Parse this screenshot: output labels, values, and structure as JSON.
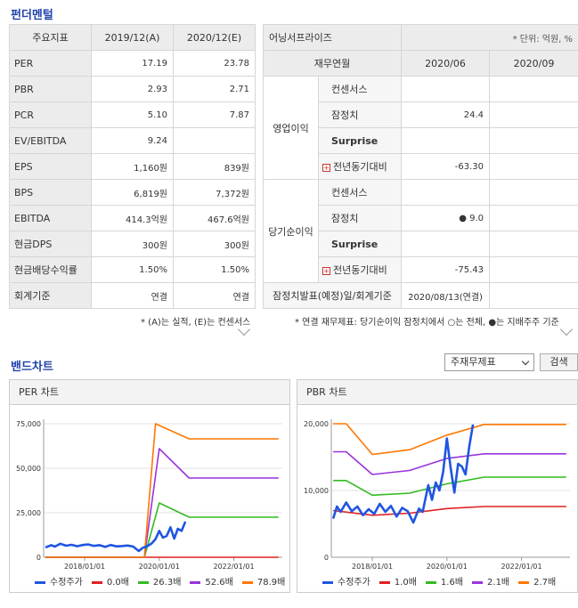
{
  "fundamental": {
    "title": "펀더멘털",
    "headers": [
      "주요지표",
      "2019/12(A)",
      "2020/12(E)"
    ],
    "rows": [
      {
        "label": "PER",
        "a": "17.19",
        "e": "23.78"
      },
      {
        "label": "PBR",
        "a": "2.93",
        "e": "2.71"
      },
      {
        "label": "PCR",
        "a": "5.10",
        "e": "7.87"
      },
      {
        "label": "EV/EBITDA",
        "a": "9.24",
        "e": ""
      },
      {
        "label": "EPS",
        "a": "1,160원",
        "e": "839원"
      },
      {
        "label": "BPS",
        "a": "6,819원",
        "e": "7,372원"
      },
      {
        "label": "EBITDA",
        "a": "414.3억원",
        "e": "467.6억원"
      },
      {
        "label": "현금DPS",
        "a": "300원",
        "e": "300원"
      },
      {
        "label": "현금배당수익률",
        "a": "1.50%",
        "e": "1.50%"
      },
      {
        "label": "회계기준",
        "a": "연결",
        "e": "연결"
      }
    ],
    "note": "* (A)는 실적, (E)는 컨센서스"
  },
  "earnings": {
    "title": "어닝서프라이즈",
    "unit": "* 단위: 억원, %",
    "period_label": "재무연월",
    "periods": [
      "2020/06",
      "2020/09"
    ],
    "groups": [
      {
        "name": "영업이익",
        "rows": [
          {
            "label": "컨센서스",
            "v1": "",
            "v2": ""
          },
          {
            "label": "잠정치",
            "v1": "24.4",
            "v2": ""
          },
          {
            "label": "Surprise",
            "v1": "",
            "v2": ""
          },
          {
            "label": "전년동기대비",
            "v1": "-63.30",
            "v2": ""
          }
        ]
      },
      {
        "name": "당기순이익",
        "rows": [
          {
            "label": "컨센서스",
            "v1": "",
            "v2": ""
          },
          {
            "label": "잠정치",
            "v1": "● 9.0",
            "v2": ""
          },
          {
            "label": "Surprise",
            "v1": "",
            "v2": ""
          },
          {
            "label": "전년동기대비",
            "v1": "-75.43",
            "v2": ""
          }
        ]
      }
    ],
    "footer_label": "잠정치발표(예정)일/회계기준",
    "footer_v1": "2020/08/13(연결)",
    "footer_v2": "",
    "note": "* 연결 재무제표: 당기순이익 잠정치에서 ○는 전체, ●는 지배주주 기준"
  },
  "band": {
    "title": "밴드차트",
    "select_value": "주재무제표",
    "search_label": "검색"
  },
  "per_chart": {
    "title": "PER 차트",
    "chart_data": {
      "type": "line",
      "y_ticks": [
        "75,000",
        "50,000",
        "25,000",
        "0"
      ],
      "ylim": [
        0,
        75000
      ],
      "x_ticks": [
        "2018/01/01",
        "2020/01/01",
        "2022/01/01"
      ],
      "x_tick_pos": [
        2018.0,
        2020.0,
        2022.0
      ],
      "xlim": [
        2016.9,
        2023.3
      ],
      "series": [
        {
          "name": "수정주가",
          "color": "#1f55e0",
          "x": [
            2016.95,
            2017.1,
            2017.2,
            2017.35,
            2017.5,
            2017.65,
            2017.8,
            2017.95,
            2018.1,
            2018.25,
            2018.4,
            2018.55,
            2018.7,
            2018.85,
            2019.0,
            2019.15,
            2019.3,
            2019.45,
            2019.55,
            2019.7,
            2019.8,
            2019.9,
            2020.0,
            2020.1,
            2020.2,
            2020.3,
            2020.4,
            2020.5,
            2020.6,
            2020.7
          ],
          "y": [
            5500,
            6800,
            6000,
            7600,
            6500,
            7000,
            6200,
            6900,
            7200,
            6400,
            6800,
            5800,
            6900,
            6100,
            6300,
            6600,
            6000,
            3500,
            5200,
            6500,
            7800,
            10200,
            14800,
            11000,
            12000,
            16800,
            10500,
            16000,
            14800,
            20000
          ]
        },
        {
          "name": "0.0배",
          "color": "#e02020",
          "x": [
            2016.95,
            2023.2
          ],
          "y": [
            0,
            0
          ]
        },
        {
          "name": "26.3배",
          "color": "#33bb22",
          "x": [
            2016.95,
            2019.0,
            2019.6,
            2020.0,
            2020.8,
            2023.2
          ],
          "y": [
            0,
            0,
            0,
            30500,
            22500,
            22500
          ]
        },
        {
          "name": "52.6배",
          "color": "#9933dd",
          "x": [
            2016.95,
            2019.0,
            2019.6,
            2020.0,
            2020.8,
            2023.2
          ],
          "y": [
            0,
            0,
            0,
            61000,
            44500,
            44500
          ]
        },
        {
          "name": "78.9배",
          "color": "#ff7700",
          "x": [
            2016.95,
            2019.0,
            2019.6,
            2019.9,
            2020.8,
            2023.2
          ],
          "y": [
            0,
            0,
            0,
            75000,
            66500,
            66500
          ]
        }
      ]
    }
  },
  "pbr_chart": {
    "title": "PBR 차트",
    "chart_data": {
      "type": "line",
      "y_ticks": [
        "20,000",
        "10,000",
        "0"
      ],
      "ylim": [
        0,
        20000
      ],
      "x_ticks": [
        "2018/01/01",
        "2020/01/01",
        "2022/01/01"
      ],
      "x_tick_pos": [
        2018.0,
        2020.0,
        2022.0
      ],
      "xlim": [
        2016.9,
        2023.3
      ],
      "series": [
        {
          "name": "수정주가",
          "color": "#1f55e0",
          "x": [
            2016.95,
            2017.05,
            2017.15,
            2017.3,
            2017.45,
            2017.6,
            2017.75,
            2017.9,
            2018.05,
            2018.2,
            2018.35,
            2018.5,
            2018.65,
            2018.8,
            2018.95,
            2019.1,
            2019.25,
            2019.35,
            2019.5,
            2019.6,
            2019.7,
            2019.8,
            2019.9,
            2020.0,
            2020.1,
            2020.2,
            2020.3,
            2020.4,
            2020.5,
            2020.6,
            2020.7
          ],
          "y": [
            5800,
            7600,
            6800,
            8200,
            6900,
            7600,
            6300,
            7200,
            6500,
            8000,
            6800,
            7700,
            6100,
            7400,
            6900,
            5200,
            7300,
            6800,
            10800,
            8600,
            11200,
            10000,
            12800,
            17800,
            13400,
            9700,
            14000,
            13600,
            12400,
            16600,
            19900
          ]
        },
        {
          "name": "1.0배",
          "color": "#e02020",
          "x": [
            2016.95,
            2018.0,
            2019.0,
            2020.0,
            2021.0,
            2023.2
          ],
          "y": [
            7000,
            6300,
            6600,
            7300,
            7600,
            7600
          ]
        },
        {
          "name": "1.6배",
          "color": "#33bb22",
          "x": [
            2016.95,
            2017.3,
            2018.0,
            2019.0,
            2020.0,
            2021.0,
            2023.2
          ],
          "y": [
            11500,
            11500,
            9300,
            9600,
            11000,
            12000,
            12000
          ]
        },
        {
          "name": "2.1배",
          "color": "#9933dd",
          "x": [
            2016.95,
            2017.3,
            2018.0,
            2019.0,
            2020.0,
            2021.0,
            2023.2
          ],
          "y": [
            15800,
            15800,
            12400,
            13000,
            14800,
            15500,
            15500
          ]
        },
        {
          "name": "2.7배",
          "color": "#ff7700",
          "x": [
            2016.95,
            2017.3,
            2018.0,
            2019.0,
            2020.0,
            2021.0,
            2023.2
          ],
          "y": [
            20000,
            20000,
            15400,
            16100,
            18300,
            19900,
            19900
          ]
        }
      ]
    }
  }
}
